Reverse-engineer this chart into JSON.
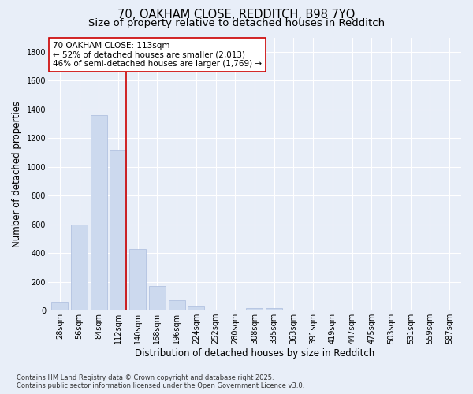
{
  "title_line1": "70, OAKHAM CLOSE, REDDITCH, B98 7YQ",
  "title_line2": "Size of property relative to detached houses in Redditch",
  "xlabel": "Distribution of detached houses by size in Redditch",
  "ylabel": "Number of detached properties",
  "categories": [
    "28sqm",
    "56sqm",
    "84sqm",
    "112sqm",
    "140sqm",
    "168sqm",
    "196sqm",
    "224sqm",
    "252sqm",
    "280sqm",
    "308sqm",
    "335sqm",
    "363sqm",
    "391sqm",
    "419sqm",
    "447sqm",
    "475sqm",
    "503sqm",
    "531sqm",
    "559sqm",
    "587sqm"
  ],
  "values": [
    60,
    600,
    1360,
    1120,
    430,
    170,
    70,
    35,
    0,
    0,
    20,
    20,
    0,
    0,
    0,
    0,
    0,
    0,
    0,
    0,
    0
  ],
  "bar_color": "#ccd9ee",
  "bar_edgecolor": "#aabbdd",
  "vline_x": 3.42,
  "vline_color": "#cc0000",
  "annotation_text": "70 OAKHAM CLOSE: 113sqm\n← 52% of detached houses are smaller (2,013)\n46% of semi-detached houses are larger (1,769) →",
  "annotation_box_color": "white",
  "annotation_box_edgecolor": "#cc0000",
  "ylim": [
    0,
    1900
  ],
  "yticks": [
    0,
    200,
    400,
    600,
    800,
    1000,
    1200,
    1400,
    1600,
    1800
  ],
  "bg_color": "#e8eef8",
  "plot_bg_color": "#e8eef8",
  "grid_color": "white",
  "footnote": "Contains HM Land Registry data © Crown copyright and database right 2025.\nContains public sector information licensed under the Open Government Licence v3.0.",
  "title_fontsize": 10.5,
  "subtitle_fontsize": 9.5,
  "xlabel_fontsize": 8.5,
  "ylabel_fontsize": 8.5,
  "tick_fontsize": 7,
  "annotation_fontsize": 7.5,
  "footnote_fontsize": 6
}
